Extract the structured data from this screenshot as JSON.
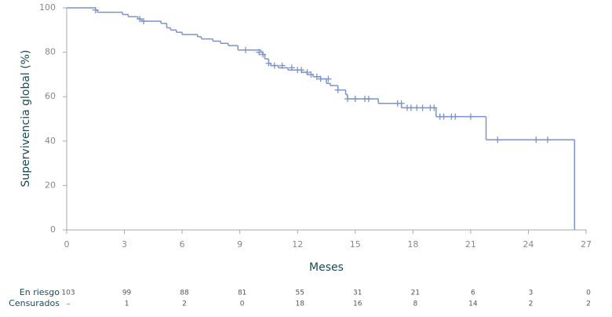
{
  "chart_data": {
    "type": "step",
    "x_label": "Meses",
    "y_label": "Supervivencia global (%)",
    "x": [
      0,
      1.5,
      1.6,
      2.9,
      3.2,
      3.7,
      3.9,
      4.9,
      5.2,
      5.4,
      5.7,
      6.0,
      6.8,
      7.0,
      7.6,
      8.0,
      8.4,
      8.9,
      10.1,
      10.2,
      10.3,
      10.5,
      10.6,
      11.0,
      11.5,
      12.2,
      12.5,
      12.8,
      13.2,
      13.5,
      13.7,
      14.1,
      14.5,
      14.6,
      16.2,
      17.4,
      19.2,
      21.8,
      26.4
    ],
    "values": [
      100,
      99,
      98,
      97,
      96,
      95,
      94,
      93,
      91,
      90,
      89,
      88,
      87,
      86,
      85,
      84,
      83,
      81,
      80,
      79,
      77,
      75,
      74,
      73,
      72,
      71,
      70,
      69,
      68,
      66,
      65,
      63,
      61,
      59,
      57,
      55,
      51,
      40.6,
      0
    ],
    "censored": {
      "x": [
        1.5,
        3.8,
        4.0,
        9.3,
        10.0,
        10.2,
        10.5,
        10.8,
        11.2,
        11.7,
        12.0,
        12.2,
        12.5,
        12.7,
        13.0,
        13.2,
        13.6,
        14.1,
        14.6,
        15.0,
        15.5,
        15.7,
        17.2,
        17.4,
        17.7,
        17.9,
        18.2,
        18.5,
        18.9,
        19.1,
        19.4,
        19.6,
        20.0,
        20.2,
        21.0,
        22.4,
        24.4,
        25.0
      ],
      "values": [
        99,
        95,
        94,
        81,
        80,
        79,
        75,
        74,
        74,
        73,
        72,
        72,
        71,
        70,
        69,
        68,
        68,
        63,
        59,
        59,
        59,
        59,
        57,
        57,
        55,
        55,
        55,
        55,
        55,
        55,
        51,
        51,
        51,
        51,
        51,
        40.6,
        40.6,
        40.6
      ]
    },
    "color": "#7b93c9",
    "xlim": [
      0,
      27
    ],
    "xticks": [
      0,
      3,
      6,
      9,
      12,
      15,
      18,
      21,
      24,
      27
    ],
    "ylim": [
      0,
      100
    ],
    "yticks": [
      0,
      20,
      40,
      60,
      80,
      100
    ],
    "risk_table": {
      "rows": [
        {
          "label": "En riesgo",
          "values": [
            103,
            99,
            88,
            81,
            55,
            31,
            21,
            6,
            3,
            0
          ]
        },
        {
          "label": "Censurados",
          "values": [
            "–",
            1,
            2,
            0,
            18,
            16,
            8,
            14,
            2,
            2
          ]
        }
      ]
    }
  }
}
